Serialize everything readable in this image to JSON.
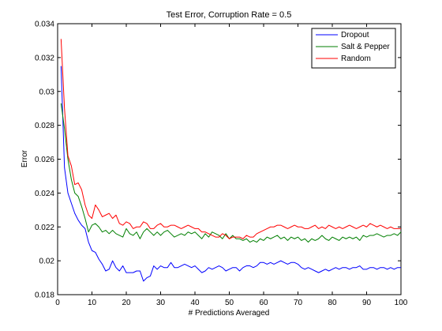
{
  "chart_data": {
    "type": "line",
    "title": "Test Error, Corruption Rate = 0.5",
    "xlabel": "# Predictions Averaged",
    "ylabel": "Error",
    "xlim": [
      0,
      100
    ],
    "ylim": [
      0.018,
      0.034
    ],
    "xticks": [
      "0",
      "10",
      "20",
      "30",
      "40",
      "50",
      "60",
      "70",
      "80",
      "90",
      "100"
    ],
    "yticks": [
      "0.018",
      "0.02",
      "0.022",
      "0.024",
      "0.026",
      "0.028",
      "0.03",
      "0.032",
      "0.034"
    ],
    "grid": false,
    "legend_position": "top-right",
    "x": [
      1,
      2,
      3,
      4,
      5,
      6,
      7,
      8,
      9,
      10,
      11,
      12,
      13,
      14,
      15,
      16,
      17,
      18,
      19,
      20,
      21,
      22,
      23,
      24,
      25,
      26,
      27,
      28,
      29,
      30,
      31,
      32,
      33,
      34,
      35,
      36,
      37,
      38,
      39,
      40,
      41,
      42,
      43,
      44,
      45,
      46,
      47,
      48,
      49,
      50,
      51,
      52,
      53,
      54,
      55,
      56,
      57,
      58,
      59,
      60,
      61,
      62,
      63,
      64,
      65,
      66,
      67,
      68,
      69,
      70,
      71,
      72,
      73,
      74,
      75,
      76,
      77,
      78,
      79,
      80,
      81,
      82,
      83,
      84,
      85,
      86,
      87,
      88,
      89,
      90,
      91,
      92,
      93,
      94,
      95,
      96,
      97,
      98,
      99,
      100
    ],
    "series": [
      {
        "name": "Dropout",
        "color": "#0000ff",
        "values": [
          0.0315,
          0.0255,
          0.024,
          0.0234,
          0.0228,
          0.0224,
          0.0221,
          0.0219,
          0.0211,
          0.0206,
          0.0205,
          0.0201,
          0.0198,
          0.0194,
          0.0195,
          0.02,
          0.0196,
          0.0194,
          0.0197,
          0.0193,
          0.0193,
          0.0193,
          0.0194,
          0.0194,
          0.0188,
          0.019,
          0.0191,
          0.0197,
          0.0195,
          0.0197,
          0.0196,
          0.0196,
          0.0199,
          0.0196,
          0.0196,
          0.0197,
          0.0198,
          0.0197,
          0.0196,
          0.0197,
          0.0195,
          0.0193,
          0.0194,
          0.0196,
          0.0195,
          0.0196,
          0.0197,
          0.0196,
          0.0194,
          0.0195,
          0.0196,
          0.0196,
          0.0194,
          0.0196,
          0.0197,
          0.0197,
          0.0196,
          0.0197,
          0.0199,
          0.0199,
          0.0198,
          0.0199,
          0.0198,
          0.0199,
          0.02,
          0.0199,
          0.0198,
          0.0199,
          0.0199,
          0.0198,
          0.0196,
          0.0195,
          0.0196,
          0.0195,
          0.0194,
          0.0193,
          0.0194,
          0.0195,
          0.0194,
          0.0195,
          0.0196,
          0.0195,
          0.0196,
          0.0196,
          0.0195,
          0.0196,
          0.0196,
          0.0197,
          0.0195,
          0.0195,
          0.0196,
          0.0196,
          0.0195,
          0.0196,
          0.0196,
          0.0195,
          0.0196,
          0.0195,
          0.0196,
          0.0196
        ]
      },
      {
        "name": "Salt & Pepper",
        "color": "#007f00",
        "values": [
          0.0293,
          0.0278,
          0.026,
          0.0248,
          0.024,
          0.0238,
          0.0232,
          0.0225,
          0.0217,
          0.0221,
          0.0222,
          0.022,
          0.0217,
          0.0218,
          0.0216,
          0.0218,
          0.0216,
          0.0215,
          0.0214,
          0.0219,
          0.0216,
          0.0215,
          0.0217,
          0.0213,
          0.0217,
          0.0219,
          0.0217,
          0.0215,
          0.0217,
          0.0215,
          0.0217,
          0.0218,
          0.0216,
          0.0214,
          0.0215,
          0.0216,
          0.0215,
          0.0217,
          0.0216,
          0.0217,
          0.0215,
          0.0213,
          0.0216,
          0.0214,
          0.0217,
          0.0216,
          0.0215,
          0.0213,
          0.0216,
          0.0213,
          0.0215,
          0.0213,
          0.0213,
          0.0212,
          0.0213,
          0.0211,
          0.0212,
          0.0211,
          0.0213,
          0.0212,
          0.0214,
          0.0213,
          0.0214,
          0.0215,
          0.0213,
          0.0214,
          0.0212,
          0.0214,
          0.0213,
          0.0214,
          0.0212,
          0.0213,
          0.0211,
          0.0213,
          0.0212,
          0.0213,
          0.0215,
          0.0213,
          0.0212,
          0.0214,
          0.0213,
          0.0212,
          0.0214,
          0.0213,
          0.0214,
          0.0213,
          0.0214,
          0.0212,
          0.0215,
          0.0214,
          0.0215,
          0.0215,
          0.0216,
          0.0215,
          0.0214,
          0.0215,
          0.0215,
          0.0216,
          0.0215,
          0.0217
        ]
      },
      {
        "name": "Random",
        "color": "#ff0000",
        "values": [
          0.0331,
          0.029,
          0.0262,
          0.0256,
          0.0245,
          0.0246,
          0.0242,
          0.0233,
          0.0227,
          0.0225,
          0.0233,
          0.023,
          0.0226,
          0.0227,
          0.0228,
          0.0225,
          0.0227,
          0.0222,
          0.0221,
          0.0223,
          0.0222,
          0.0219,
          0.022,
          0.022,
          0.0223,
          0.0222,
          0.0219,
          0.0219,
          0.0221,
          0.0222,
          0.022,
          0.022,
          0.0221,
          0.0221,
          0.022,
          0.0219,
          0.022,
          0.0221,
          0.022,
          0.0219,
          0.0219,
          0.0217,
          0.0217,
          0.0216,
          0.0215,
          0.0214,
          0.0214,
          0.0216,
          0.0215,
          0.0213,
          0.0214,
          0.0214,
          0.0214,
          0.0213,
          0.0215,
          0.0214,
          0.0214,
          0.0216,
          0.0217,
          0.0218,
          0.0219,
          0.022,
          0.022,
          0.0221,
          0.0221,
          0.022,
          0.0219,
          0.022,
          0.0221,
          0.022,
          0.022,
          0.0219,
          0.0219,
          0.022,
          0.0221,
          0.0219,
          0.022,
          0.0219,
          0.0221,
          0.022,
          0.0219,
          0.022,
          0.0219,
          0.022,
          0.0221,
          0.022,
          0.0219,
          0.022,
          0.0221,
          0.022,
          0.0222,
          0.0221,
          0.022,
          0.0221,
          0.022,
          0.0219,
          0.022,
          0.0219,
          0.0219,
          0.0219
        ]
      }
    ]
  }
}
